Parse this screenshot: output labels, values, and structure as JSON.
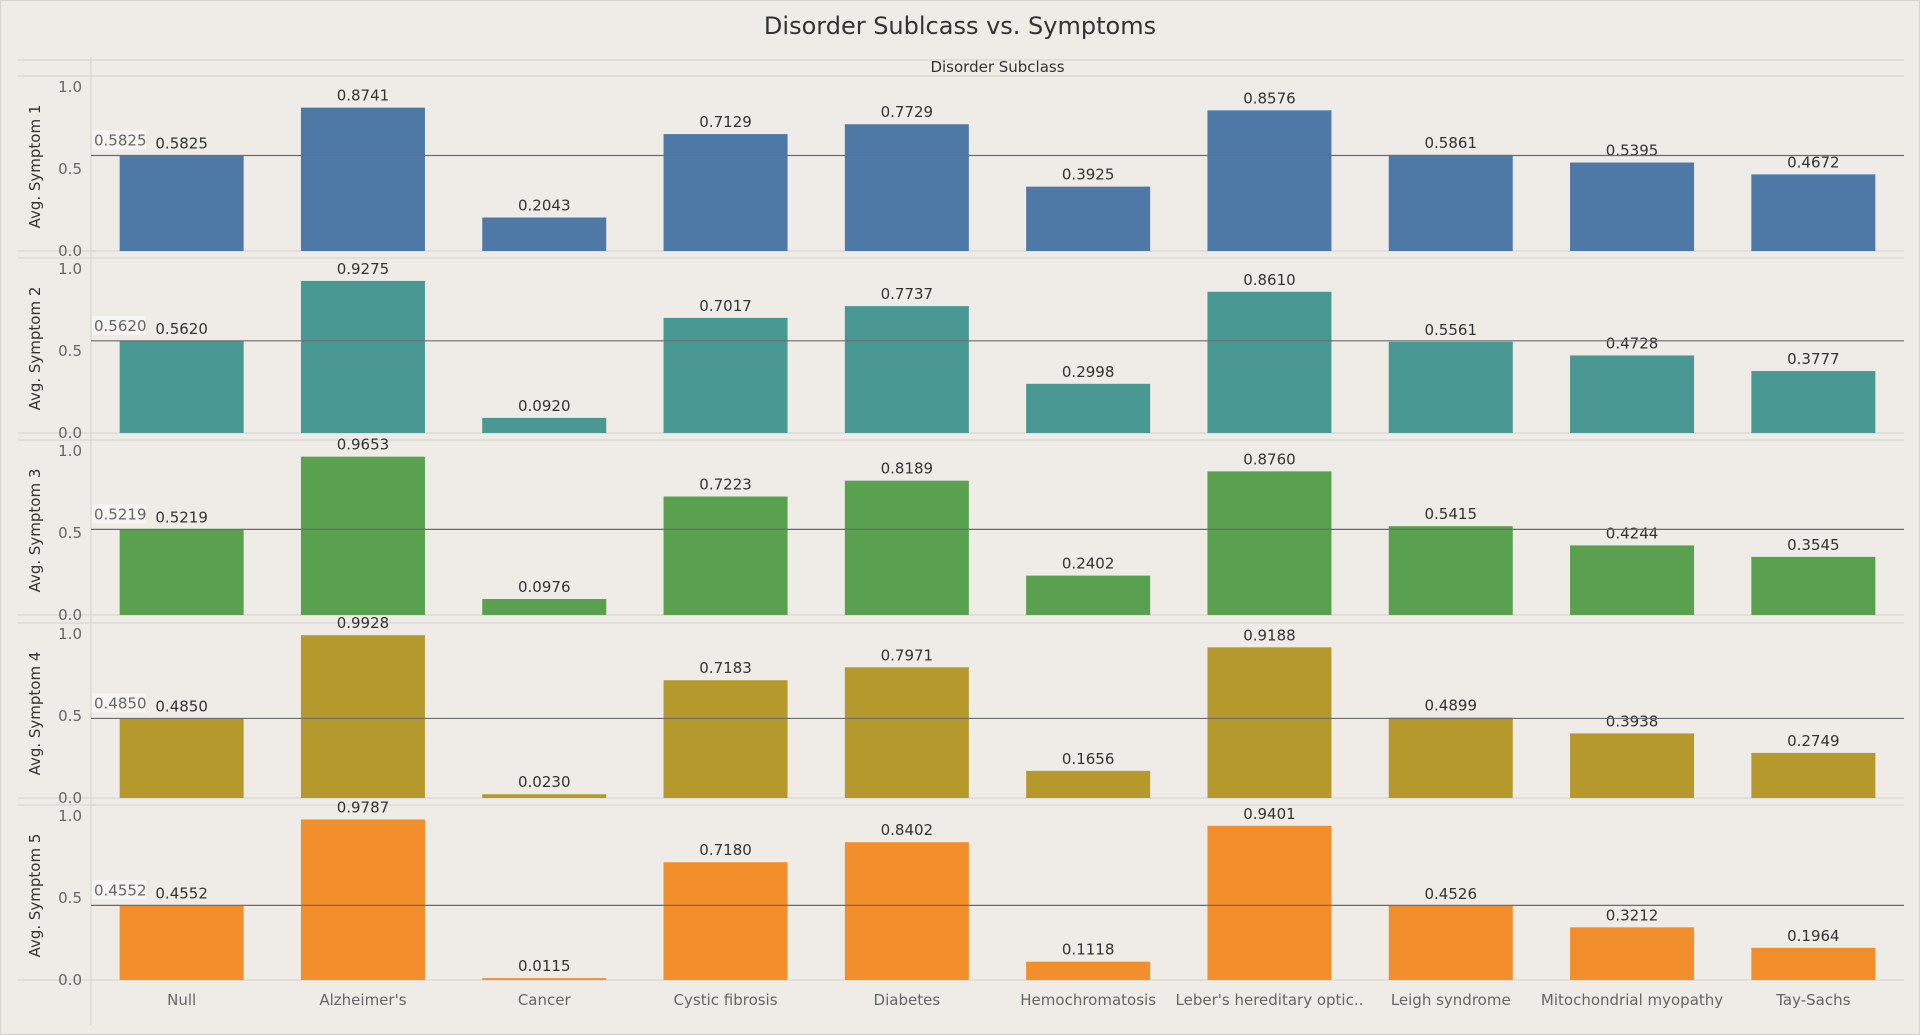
{
  "chart_data": {
    "type": "bar",
    "title": "Disorder Sublcass vs. Symptoms",
    "column_header": "Disorder Subclass",
    "categories": [
      "Null",
      "Alzheimer's",
      "Cancer",
      "Cystic fibrosis",
      "Diabetes",
      "Hemochromatosis",
      "Leber's hereditary optic..",
      "Leigh syndrome",
      "Mitochondrial myopathy",
      "Tay-Sachs"
    ],
    "ylim": [
      0,
      1.0
    ],
    "y_ticks": [
      "0.0",
      "0.5",
      "1.0"
    ],
    "reference_line": "average",
    "series": [
      {
        "name": "Avg. Symptom 1",
        "color": "#4e79a7",
        "reference_value": "0.5825",
        "values": [
          0.5825,
          0.8741,
          0.2043,
          0.7129,
          0.7729,
          0.3925,
          0.8576,
          0.5861,
          0.5395,
          0.4672
        ],
        "labels": [
          "0.5825",
          "0.8741",
          "0.2043",
          "0.7129",
          "0.7729",
          "0.3925",
          "0.8576",
          "0.5861",
          "0.5395",
          "0.4672"
        ]
      },
      {
        "name": "Avg. Symptom 2",
        "color": "#499894",
        "reference_value": "0.5620",
        "values": [
          0.562,
          0.9275,
          0.092,
          0.7017,
          0.7737,
          0.2998,
          0.861,
          0.5561,
          0.4728,
          0.3777
        ],
        "labels": [
          "0.5620",
          "0.9275",
          "0.0920",
          "0.7017",
          "0.7737",
          "0.2998",
          "0.8610",
          "0.5561",
          "0.4728",
          "0.3777"
        ]
      },
      {
        "name": "Avg. Symptom 3",
        "color": "#59a14f",
        "reference_value": "0.5219",
        "values": [
          0.5219,
          0.9653,
          0.0976,
          0.7223,
          0.8189,
          0.2402,
          0.876,
          0.5415,
          0.4244,
          0.3545
        ],
        "labels": [
          "0.5219",
          "0.9653",
          "0.0976",
          "0.7223",
          "0.8189",
          "0.2402",
          "0.8760",
          "0.5415",
          "0.4244",
          "0.3545"
        ]
      },
      {
        "name": "Avg. Symptom 4",
        "color": "#b6992d",
        "reference_value": "0.4850",
        "values": [
          0.485,
          0.9928,
          0.023,
          0.7183,
          0.7971,
          0.1656,
          0.9188,
          0.4899,
          0.3938,
          0.2749
        ],
        "labels": [
          "0.4850",
          "0.9928",
          "0.0230",
          "0.7183",
          "0.7971",
          "0.1656",
          "0.9188",
          "0.4899",
          "0.3938",
          "0.2749"
        ]
      },
      {
        "name": "Avg. Symptom 5",
        "color": "#f28e2b",
        "reference_value": "0.4552",
        "values": [
          0.4552,
          0.9787,
          0.0115,
          0.718,
          0.8402,
          0.1118,
          0.9401,
          0.4526,
          0.3212,
          0.1964
        ],
        "labels": [
          "0.4552",
          "0.9787",
          "0.0115",
          "0.7180",
          "0.8402",
          "0.1118",
          "0.9401",
          "0.4526",
          "0.3212",
          "0.1964"
        ]
      }
    ]
  }
}
